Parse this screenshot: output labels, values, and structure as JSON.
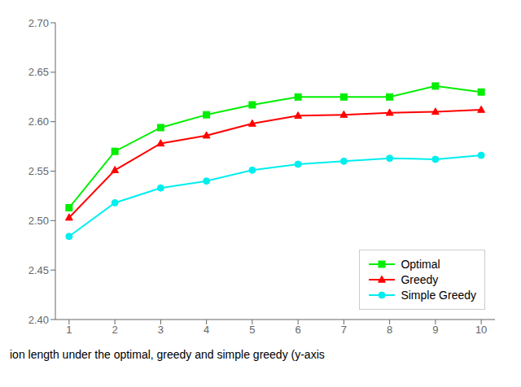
{
  "chart_data": {
    "type": "line",
    "x": [
      1,
      2,
      3,
      4,
      5,
      6,
      7,
      8,
      9,
      10
    ],
    "series": [
      {
        "name": "Optimal",
        "color": "#00ee00",
        "marker": "square",
        "values": [
          2.513,
          2.57,
          2.594,
          2.607,
          2.617,
          2.625,
          2.625,
          2.625,
          2.636,
          2.63
        ]
      },
      {
        "name": "Greedy",
        "color": "#ff0000",
        "marker": "triangle",
        "values": [
          2.503,
          2.551,
          2.578,
          2.586,
          2.598,
          2.606,
          2.607,
          2.609,
          2.61,
          2.612
        ]
      },
      {
        "name": "Simple Greedy",
        "color": "#00eeee",
        "marker": "circle",
        "values": [
          2.484,
          2.518,
          2.533,
          2.54,
          2.551,
          2.557,
          2.56,
          2.563,
          2.562,
          2.566
        ]
      }
    ],
    "xlim": [
      0.7,
      10.3
    ],
    "xticks": [
      1,
      2,
      3,
      4,
      5,
      6,
      7,
      8,
      9,
      10
    ],
    "ylim": [
      2.4,
      2.7
    ],
    "yticks": [
      {
        "value": 2.4,
        "label": "2.40"
      },
      2.45,
      {
        "value": 2.5,
        "label": "2.50"
      },
      2.55,
      {
        "value": 2.6,
        "label": "2.60"
      },
      2.65,
      {
        "value": 2.7,
        "label": "2.70"
      }
    ],
    "legend": "lower right",
    "grid": false,
    "annotations": [
      "ion length under the optimal, greedy and simple greedy (y-axis"
    ]
  }
}
